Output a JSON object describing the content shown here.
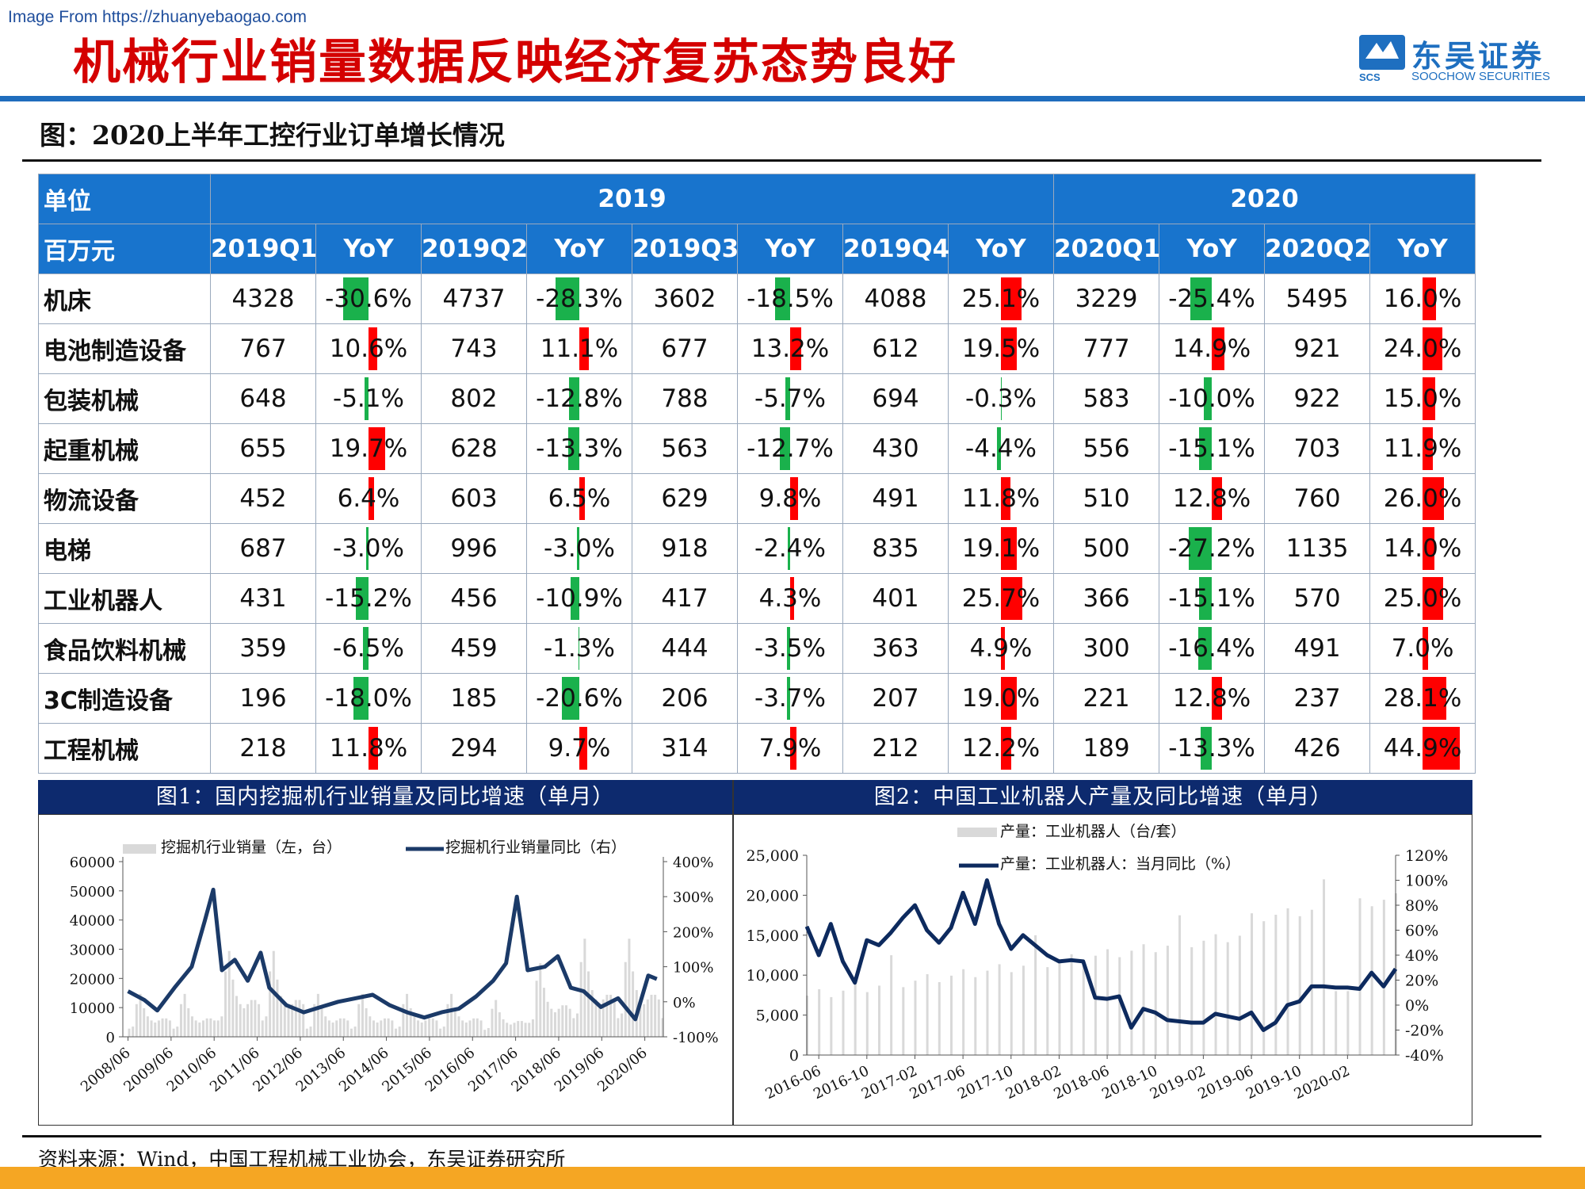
{
  "watermark": "Image From https://zhuanyebaogao.com",
  "title": "机械行业销量数据反映经济复苏态势良好",
  "logo": {
    "name": "东吴证券",
    "en": "SOOCHOW SECURITIES",
    "abbr": "SCS"
  },
  "subtitle": "图：2020上半年工控行业订单增长情况",
  "table": {
    "corner_top": "单位",
    "corner_bottom": "百万元",
    "year_2019": "2019",
    "year_2020": "2020",
    "columns": [
      "2019Q1",
      "YoY",
      "2019Q2",
      "YoY",
      "2019Q3",
      "YoY",
      "2019Q4",
      "YoY",
      "2020Q1",
      "YoY",
      "2020Q2",
      "YoY"
    ],
    "rows": [
      {
        "name": "机床",
        "cells": [
          "4328",
          "-30.6%",
          "4737",
          "-28.3%",
          "3602",
          "-18.5%",
          "4088",
          "25.1%",
          "3229",
          "-25.4%",
          "5495",
          "16.0%"
        ]
      },
      {
        "name": "电池制造设备",
        "cells": [
          "767",
          "10.6%",
          "743",
          "11.1%",
          "677",
          "13.2%",
          "612",
          "19.5%",
          "777",
          "14.9%",
          "921",
          "24.0%"
        ]
      },
      {
        "name": "包装机械",
        "cells": [
          "648",
          "-5.1%",
          "802",
          "-12.8%",
          "788",
          "-5.7%",
          "694",
          "-0.3%",
          "583",
          "-10.0%",
          "922",
          "15.0%"
        ]
      },
      {
        "name": "起重机械",
        "cells": [
          "655",
          "19.7%",
          "628",
          "-13.3%",
          "563",
          "-12.7%",
          "430",
          "-4.4%",
          "556",
          "-15.1%",
          "703",
          "11.9%"
        ]
      },
      {
        "name": "物流设备",
        "cells": [
          "452",
          "6.4%",
          "603",
          "6.5%",
          "629",
          "9.8%",
          "491",
          "11.8%",
          "510",
          "12.8%",
          "760",
          "26.0%"
        ]
      },
      {
        "name": "电梯",
        "cells": [
          "687",
          "-3.0%",
          "996",
          "-3.0%",
          "918",
          "-2.4%",
          "835",
          "19.1%",
          "500",
          "-27.2%",
          "1135",
          "14.0%"
        ]
      },
      {
        "name": "工业机器人",
        "cells": [
          "431",
          "-15.2%",
          "456",
          "-10.9%",
          "417",
          "4.3%",
          "401",
          "25.7%",
          "366",
          "-15.1%",
          "570",
          "25.0%"
        ]
      },
      {
        "name": "食品饮料机械",
        "cells": [
          "359",
          "-6.5%",
          "459",
          "-1.3%",
          "444",
          "-3.5%",
          "363",
          "4.9%",
          "300",
          "-16.4%",
          "491",
          "7.0%"
        ]
      },
      {
        "name": "3C制造设备",
        "cells": [
          "196",
          "-18.0%",
          "185",
          "-20.6%",
          "206",
          "-3.7%",
          "207",
          "19.0%",
          "221",
          "12.8%",
          "237",
          "28.1%"
        ]
      },
      {
        "name": "工程机械",
        "cells": [
          "218",
          "11.8%",
          "294",
          "9.7%",
          "314",
          "7.9%",
          "212",
          "12.2%",
          "189",
          "-13.3%",
          "426",
          "44.9%"
        ]
      }
    ]
  },
  "fig1": {
    "title": "图1：国内挖掘机行业销量及同比增速（单月）"
  },
  "fig2": {
    "title": "图2：中国工业机器人产量及同比增速（单月）"
  },
  "source": "资料来源：Wind，中国工程机械工业协会，东吴证券研究所",
  "colors": {
    "title_red": "#d40000",
    "header_blue": "#1874cd",
    "panel_navy": "#0d2a6e",
    "bar_red": "#ff0000",
    "bar_green": "#1ab14c",
    "line_navy": "#1b3a68",
    "footer_orange": "#f5a623"
  },
  "chart_data": [
    {
      "type": "bar+line",
      "title": "",
      "series": [
        {
          "name": "挖掘机行业销量（左，台）",
          "type": "bar",
          "axis": "left"
        },
        {
          "name": "挖掘机行业销量同比（右）",
          "type": "line",
          "axis": "right"
        }
      ],
      "x_ticks": [
        "2008/06",
        "2009/06",
        "2010/06",
        "2011/06",
        "2012/06",
        "2013/06",
        "2014/06",
        "2015/06",
        "2016/06",
        "2017/06",
        "2018/06",
        "2019/06",
        "2020/06"
      ],
      "y_left_ticks": [
        "0",
        "10000",
        "20000",
        "30000",
        "40000",
        "50000",
        "60000"
      ],
      "y_right_ticks": [
        "-100%",
        "0%",
        "100%",
        "200%",
        "300%",
        "400%"
      ],
      "ylim_left": [
        0,
        60000
      ],
      "ylim_right": [
        -100,
        400
      ],
      "legend_position": "top",
      "line_points": [
        [
          2008.42,
          30
        ],
        [
          2008.8,
          5
        ],
        [
          2009.1,
          -25
        ],
        [
          2009.5,
          40
        ],
        [
          2009.9,
          100
        ],
        [
          2010.2,
          230
        ],
        [
          2010.4,
          320
        ],
        [
          2010.6,
          90
        ],
        [
          2010.9,
          120
        ],
        [
          2011.2,
          60
        ],
        [
          2011.5,
          140
        ],
        [
          2011.7,
          40
        ],
        [
          2012.1,
          -10
        ],
        [
          2012.5,
          -30
        ],
        [
          2012.9,
          -15
        ],
        [
          2013.3,
          0
        ],
        [
          2013.7,
          10
        ],
        [
          2014.1,
          20
        ],
        [
          2014.5,
          -10
        ],
        [
          2014.9,
          -30
        ],
        [
          2015.3,
          -45
        ],
        [
          2015.7,
          -30
        ],
        [
          2016.1,
          -20
        ],
        [
          2016.5,
          15
        ],
        [
          2016.9,
          60
        ],
        [
          2017.2,
          110
        ],
        [
          2017.45,
          300
        ],
        [
          2017.7,
          90
        ],
        [
          2018.1,
          100
        ],
        [
          2018.4,
          130
        ],
        [
          2018.7,
          40
        ],
        [
          2019.0,
          30
        ],
        [
          2019.4,
          -15
        ],
        [
          2019.8,
          10
        ],
        [
          2020.2,
          -50
        ],
        [
          2020.5,
          75
        ],
        [
          2020.7,
          65
        ]
      ]
    },
    {
      "type": "bar+line",
      "title": "",
      "series": [
        {
          "name": "产量：工业机器人（台/套）",
          "type": "bar",
          "axis": "left"
        },
        {
          "name": "产量：工业机器人：当月同比（%）",
          "type": "line",
          "axis": "right"
        }
      ],
      "x_ticks": [
        "2016-06",
        "2016-10",
        "2017-02",
        "2017-06",
        "2017-10",
        "2018-02",
        "2018-06",
        "2018-10",
        "2019-02",
        "2019-06",
        "2019-10",
        "2020-02"
      ],
      "y_left_ticks": [
        "0",
        "5,000",
        "10,000",
        "15,000",
        "20,000",
        "25,000"
      ],
      "y_right_ticks": [
        "-40%",
        "-20%",
        "0%",
        "20%",
        "40%",
        "60%",
        "80%",
        "100%",
        "120%"
      ],
      "ylim_left": [
        0,
        25000
      ],
      "ylim_right": [
        -40,
        120
      ],
      "legend_position": "top",
      "line_points": [
        [
          "2016-05",
          63
        ],
        [
          "2016-06",
          40
        ],
        [
          "2016-07",
          65
        ],
        [
          "2016-08",
          35
        ],
        [
          "2016-09",
          18
        ],
        [
          "2016-10",
          52
        ],
        [
          "2016-11",
          48
        ],
        [
          "2016-12",
          58
        ],
        [
          "2017-01",
          70
        ],
        [
          "2017-02",
          80
        ],
        [
          "2017-03",
          60
        ],
        [
          "2017-04",
          50
        ],
        [
          "2017-05",
          62
        ],
        [
          "2017-06",
          90
        ],
        [
          "2017-07",
          65
        ],
        [
          "2017-08",
          100
        ],
        [
          "2017-09",
          65
        ],
        [
          "2017-10",
          45
        ],
        [
          "2017-11",
          56
        ],
        [
          "2017-12",
          48
        ],
        [
          "2018-01",
          40
        ],
        [
          "2018-02",
          35
        ],
        [
          "2018-03",
          36
        ],
        [
          "2018-04",
          35
        ],
        [
          "2018-05",
          6
        ],
        [
          "2018-06",
          5
        ],
        [
          "2018-07",
          7
        ],
        [
          "2018-08",
          -18
        ],
        [
          "2018-09",
          -3
        ],
        [
          "2018-10",
          -6
        ],
        [
          "2018-11",
          -12
        ],
        [
          "2018-12",
          -13
        ],
        [
          "2019-01",
          -14
        ],
        [
          "2019-02",
          -14
        ],
        [
          "2019-03",
          -7
        ],
        [
          "2019-04",
          -9
        ],
        [
          "2019-05",
          -11
        ],
        [
          "2019-06",
          -6
        ],
        [
          "2019-07",
          -20
        ],
        [
          "2019-08",
          -14
        ],
        [
          "2019-09",
          0
        ],
        [
          "2019-10",
          3
        ],
        [
          "2019-11",
          15
        ],
        [
          "2019-12",
          15
        ],
        [
          "2020-01",
          14
        ],
        [
          "2020-02",
          14
        ],
        [
          "2020-03",
          13
        ],
        [
          "2020-04",
          26
        ],
        [
          "2020-05",
          15
        ],
        [
          "2020-06",
          29
        ]
      ]
    }
  ]
}
